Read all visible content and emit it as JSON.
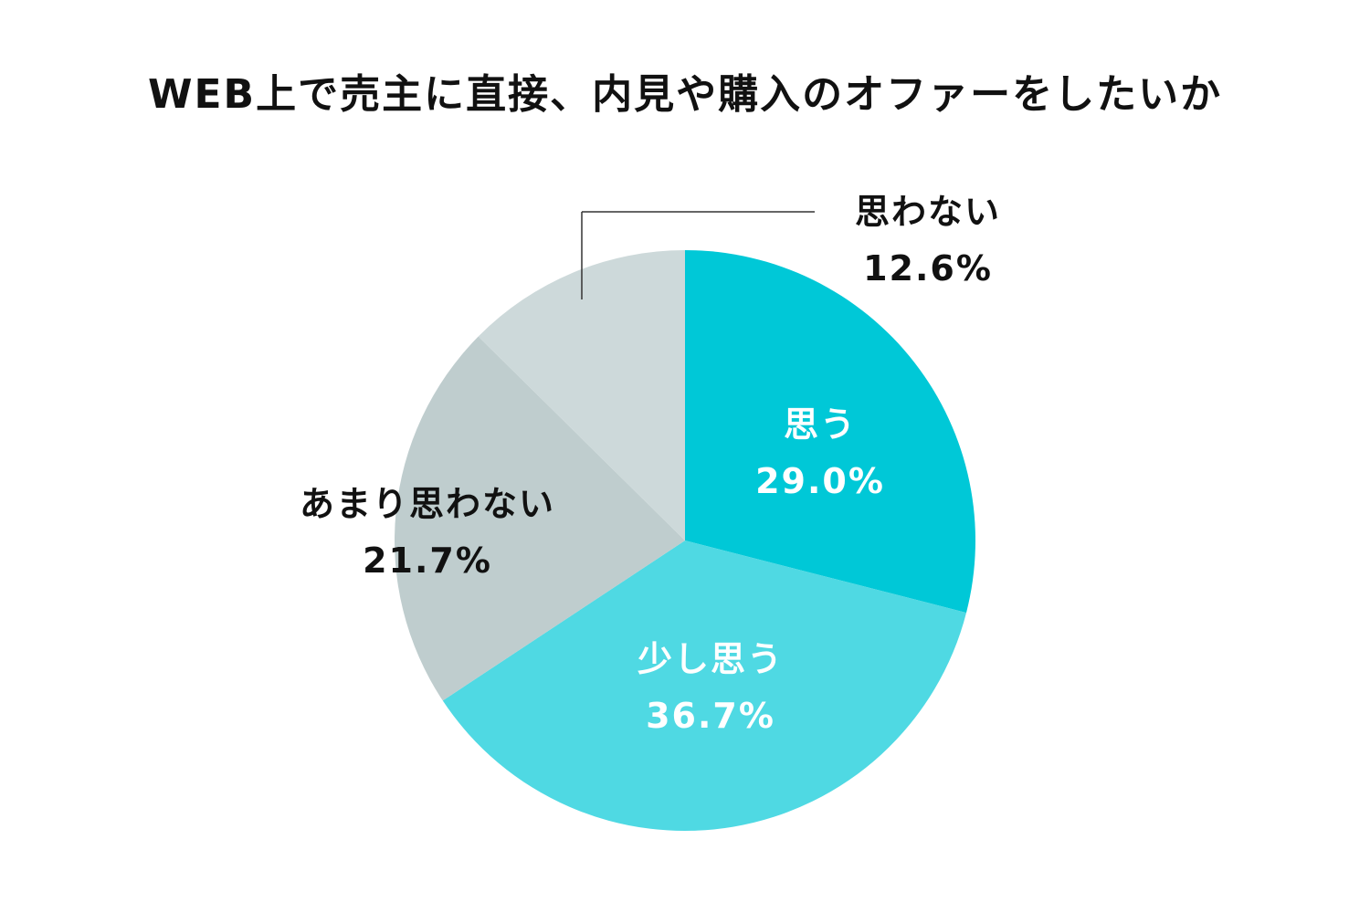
{
  "chart_data": {
    "type": "pie",
    "title": "WEB上で売主に直接、内見や購入のオファーをしたいか",
    "start_angle_deg": 0,
    "direction": "clockwise",
    "slices": [
      {
        "label": "思う",
        "value": 29.0,
        "value_label": "29.0%",
        "color": "#00c8d7",
        "text_color": "#ffffff"
      },
      {
        "label": "少し思う",
        "value": 36.7,
        "value_label": "36.7%",
        "color": "#4fd9e3",
        "text_color": "#ffffff"
      },
      {
        "label": "あまり思わない",
        "value": 21.7,
        "value_label": "21.7%",
        "color": "#bfcdce",
        "text_color": "#111111"
      },
      {
        "label": "思わない",
        "value": 12.6,
        "value_label": "12.6%",
        "color": "#cdd9da",
        "text_color": "#111111"
      }
    ]
  }
}
